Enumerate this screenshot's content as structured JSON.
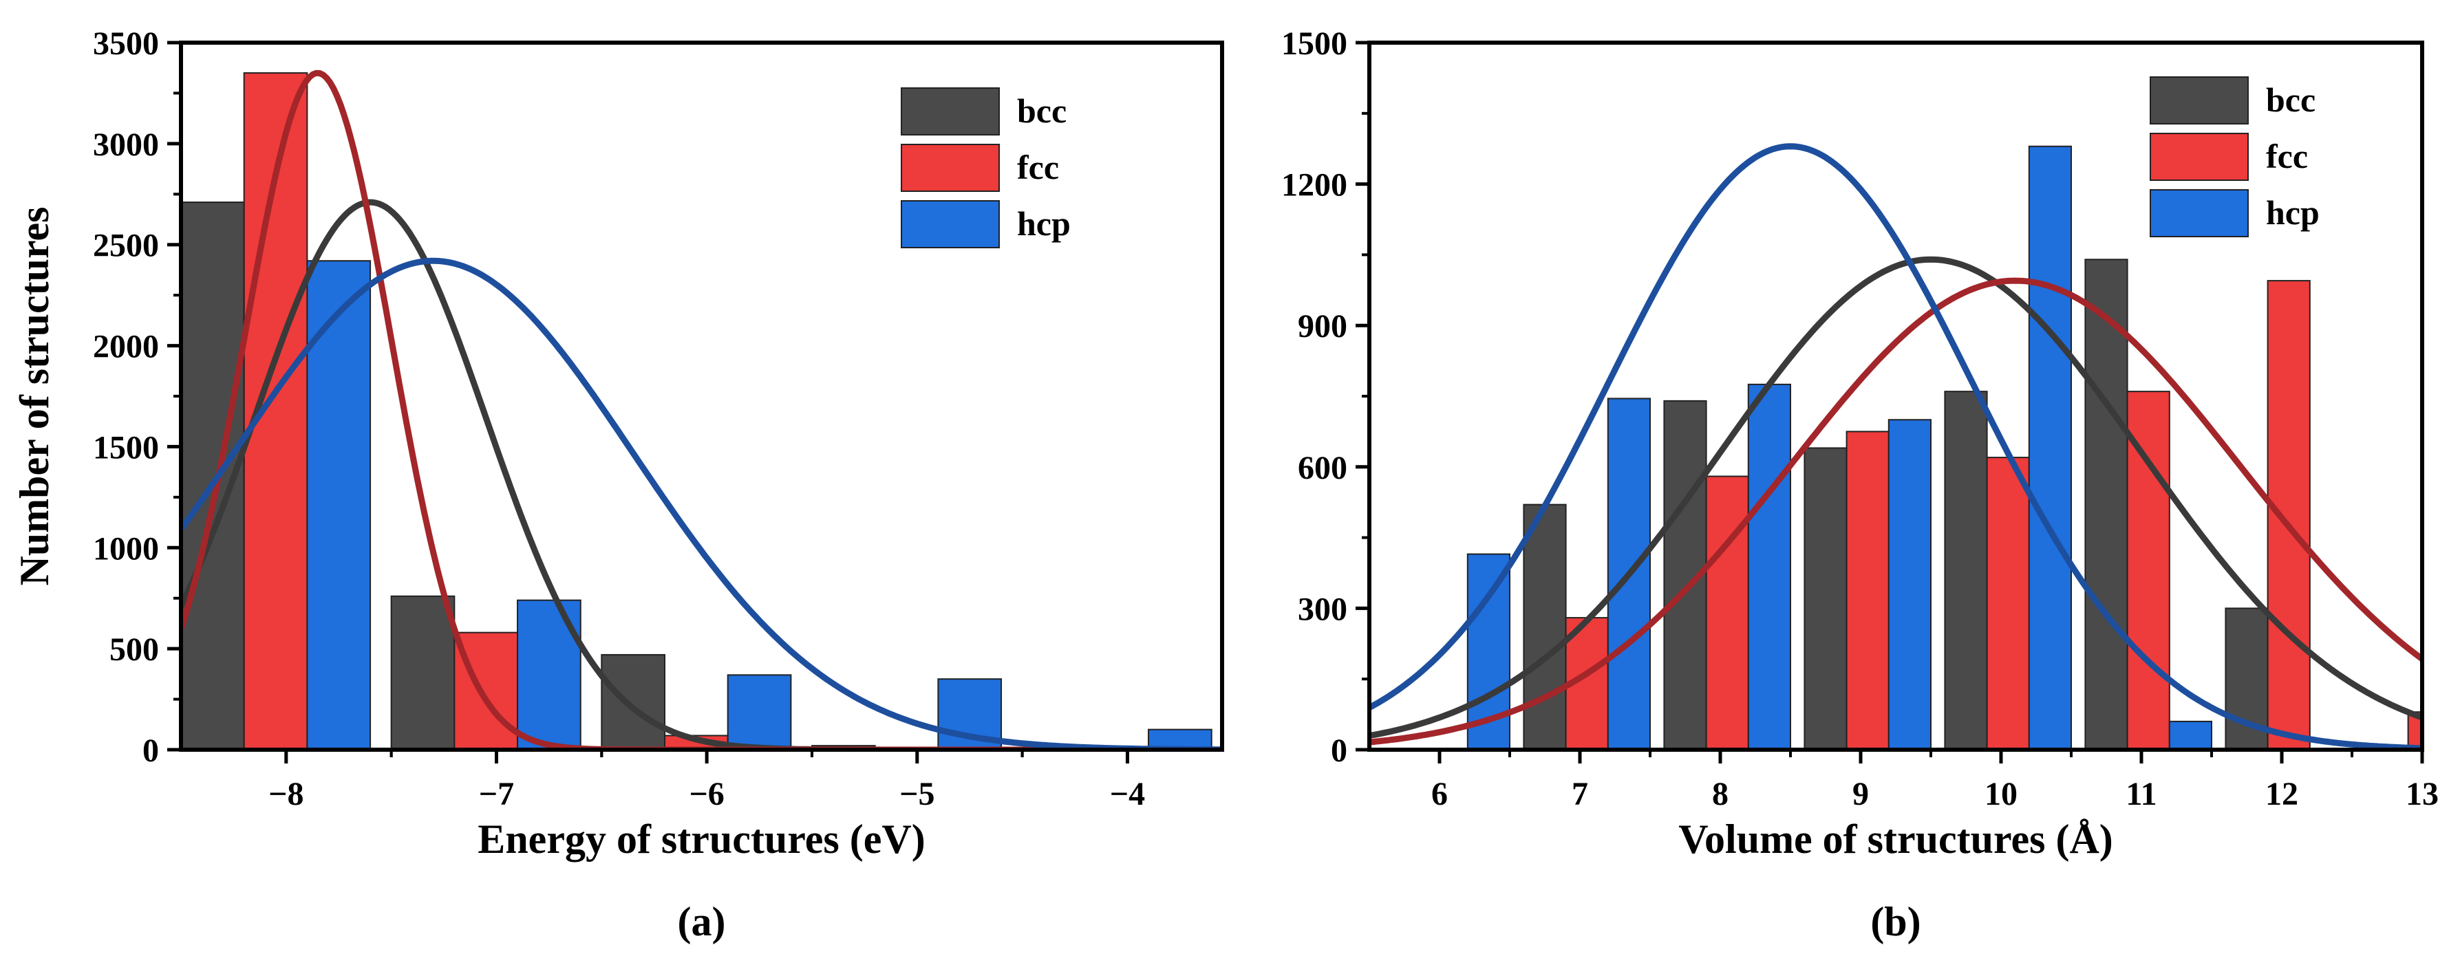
{
  "chart_data": [
    {
      "panel_label": "(a)",
      "type": "bar",
      "xlabel": "Energy of structures (eV)",
      "ylabel": "Number of structures",
      "xlim": [
        -8.5,
        -3.55
      ],
      "ylim": [
        0,
        3500
      ],
      "xticks": [
        -8,
        -7,
        -6,
        -5,
        -4
      ],
      "xtick_labels": [
        "−8",
        "−7",
        "−6",
        "−5",
        "−4"
      ],
      "yticks": [
        0,
        500,
        1000,
        1500,
        2000,
        2500,
        3000,
        3500
      ],
      "ytick_labels": [
        "0",
        "500",
        "1000",
        "1500",
        "2000",
        "2500",
        "3000",
        "3500"
      ],
      "bin_width": 0.3,
      "legend_position": "top-right",
      "series": [
        {
          "name": "bcc",
          "color": "#4a4a4a",
          "curve_color": "#3a3a3a",
          "x": [
            -8.35,
            -7.35,
            -6.35,
            -5.35
          ],
          "values": [
            2710,
            760,
            470,
            20
          ],
          "fit": {
            "peak": 2710,
            "mean": -7.6,
            "sigma": 0.55
          }
        },
        {
          "name": "fcc",
          "color": "#ee3b3b",
          "curve_color": "#a3262a",
          "x": [
            -8.05,
            -7.05,
            -6.05
          ],
          "values": [
            3350,
            580,
            70
          ],
          "fit": {
            "peak": 3350,
            "mean": -7.85,
            "sigma": 0.35
          }
        },
        {
          "name": "hcp",
          "color": "#1f6fdd",
          "curve_color": "#1d4f9e",
          "x": [
            -7.75,
            -6.75,
            -5.75,
            -4.75,
            -3.75
          ],
          "values": [
            2420,
            740,
            370,
            350,
            100
          ],
          "fit": {
            "peak": 2420,
            "mean": -7.3,
            "sigma": 0.95
          }
        }
      ]
    },
    {
      "panel_label": "(b)",
      "type": "bar",
      "xlabel": "Volume of structures (Å)",
      "ylabel": "",
      "xlim": [
        5.5,
        13
      ],
      "ylim": [
        0,
        1500
      ],
      "xticks": [
        6,
        7,
        8,
        9,
        10,
        11,
        12,
        13
      ],
      "xtick_labels": [
        "6",
        "7",
        "8",
        "9",
        "10",
        "11",
        "12",
        "13"
      ],
      "yticks": [
        0,
        300,
        600,
        900,
        1200,
        1500
      ],
      "ytick_labels": [
        "0",
        "300",
        "600",
        "900",
        "1200",
        "1500"
      ],
      "bin_width": 0.3,
      "legend_position": "top-right",
      "series": [
        {
          "name": "bcc",
          "color": "#4a4a4a",
          "curve_color": "#3a3a3a",
          "x": [
            6.75,
            7.75,
            8.75,
            9.75,
            10.75,
            11.75
          ],
          "values": [
            520,
            740,
            640,
            760,
            1040,
            300
          ],
          "fit": {
            "peak": 1040,
            "mean": 9.5,
            "sigma": 1.5
          }
        },
        {
          "name": "fcc",
          "color": "#ee3b3b",
          "curve_color": "#a3262a",
          "x": [
            7.05,
            8.05,
            9.05,
            10.05,
            11.05,
            12.05,
            13.05
          ],
          "values": [
            280,
            580,
            675,
            620,
            760,
            995,
            80
          ],
          "fit": {
            "peak": 995,
            "mean": 10.1,
            "sigma": 1.6
          }
        },
        {
          "name": "hcp",
          "color": "#1f6fdd",
          "curve_color": "#1d4f9e",
          "x": [
            6.35,
            7.35,
            8.35,
            9.35,
            10.35,
            11.35
          ],
          "values": [
            415,
            745,
            775,
            700,
            1280,
            60
          ],
          "fit": {
            "peak": 1280,
            "mean": 8.5,
            "sigma": 1.3
          }
        }
      ]
    }
  ]
}
